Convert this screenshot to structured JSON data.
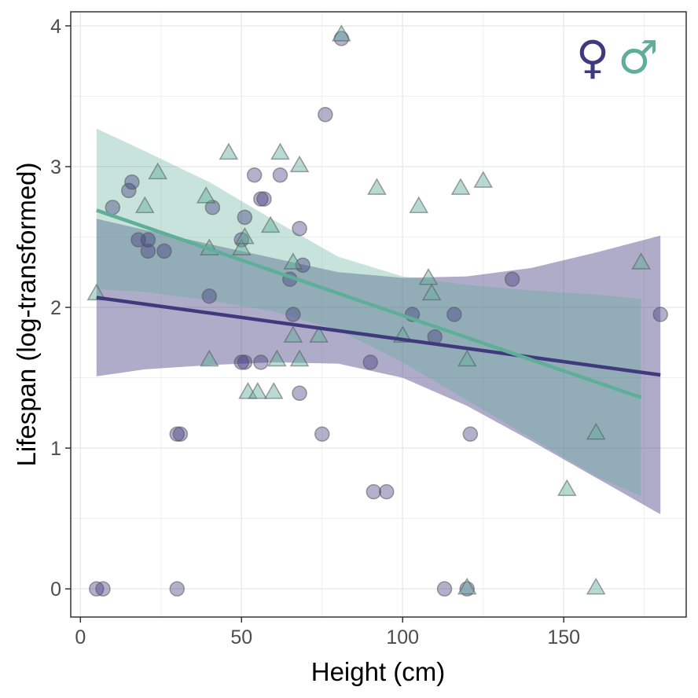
{
  "chart_data": {
    "type": "scatter",
    "title": "",
    "xlabel": "Height (cm)",
    "ylabel": "Lifespan (log-transformed)",
    "xlim": [
      -3,
      188
    ],
    "ylim": [
      -0.2,
      4.1
    ],
    "x_ticks": [
      0,
      50,
      100,
      150
    ],
    "y_ticks": [
      0,
      1,
      2,
      3,
      4
    ],
    "grid": true,
    "legend": {
      "position": "top-right",
      "entries": [
        {
          "name": "female",
          "symbol": "♀",
          "color": "#3f3a7e"
        },
        {
          "name": "male",
          "symbol": "♂",
          "color": "#5fae98"
        }
      ]
    },
    "series": [
      {
        "name": "female",
        "marker": "circle",
        "color": "#3f3a7e",
        "points": [
          [
            5,
            0
          ],
          [
            7,
            0
          ],
          [
            30,
            0
          ],
          [
            113,
            0
          ],
          [
            120,
            0
          ],
          [
            10,
            2.71
          ],
          [
            15,
            2.83
          ],
          [
            16,
            2.89
          ],
          [
            18,
            2.48
          ],
          [
            21,
            2.48
          ],
          [
            21,
            2.4
          ],
          [
            26,
            2.4
          ],
          [
            30,
            1.1
          ],
          [
            31,
            1.1
          ],
          [
            40,
            2.08
          ],
          [
            41,
            2.71
          ],
          [
            50,
            1.61
          ],
          [
            51,
            1.61
          ],
          [
            50,
            2.48
          ],
          [
            51,
            2.64
          ],
          [
            54,
            2.94
          ],
          [
            56,
            1.61
          ],
          [
            56,
            2.77
          ],
          [
            57,
            2.77
          ],
          [
            62,
            2.94
          ],
          [
            65,
            2.2
          ],
          [
            66,
            1.95
          ],
          [
            68,
            2.56
          ],
          [
            68,
            1.39
          ],
          [
            69,
            2.3
          ],
          [
            75,
            1.1
          ],
          [
            76,
            3.37
          ],
          [
            81,
            3.91
          ],
          [
            90,
            1.61
          ],
          [
            91,
            0.69
          ],
          [
            95,
            0.69
          ],
          [
            103,
            1.95
          ],
          [
            110,
            1.79
          ],
          [
            116,
            1.95
          ],
          [
            121,
            1.1
          ],
          [
            134,
            2.2
          ],
          [
            180,
            1.95
          ]
        ],
        "trend": {
          "x": [
            5,
            180
          ],
          "y": [
            2.07,
            1.52
          ]
        },
        "ci_upper": [
          [
            5,
            2.63
          ],
          [
            20,
            2.55
          ],
          [
            40,
            2.45
          ],
          [
            60,
            2.35
          ],
          [
            80,
            2.25
          ],
          [
            100,
            2.21
          ],
          [
            120,
            2.22
          ],
          [
            140,
            2.28
          ],
          [
            160,
            2.39
          ],
          [
            180,
            2.51
          ]
        ],
        "ci_lower": [
          [
            5,
            1.51
          ],
          [
            20,
            1.56
          ],
          [
            40,
            1.59
          ],
          [
            60,
            1.61
          ],
          [
            80,
            1.6
          ],
          [
            100,
            1.5
          ],
          [
            120,
            1.3
          ],
          [
            140,
            1.05
          ],
          [
            160,
            0.79
          ],
          [
            180,
            0.53
          ]
        ]
      },
      {
        "name": "male",
        "marker": "triangle",
        "color": "#5fae98",
        "points": [
          [
            5,
            2.1
          ],
          [
            20,
            2.72
          ],
          [
            24,
            2.96
          ],
          [
            39,
            2.79
          ],
          [
            40,
            1.63
          ],
          [
            40,
            2.42
          ],
          [
            46,
            3.1
          ],
          [
            50,
            2.42
          ],
          [
            51,
            2.5
          ],
          [
            52,
            1.4
          ],
          [
            55,
            1.4
          ],
          [
            59,
            2.58
          ],
          [
            60,
            1.4
          ],
          [
            61,
            1.63
          ],
          [
            62,
            3.1
          ],
          [
            66,
            2.32
          ],
          [
            66,
            1.8
          ],
          [
            68,
            1.63
          ],
          [
            68,
            3.01
          ],
          [
            74,
            1.8
          ],
          [
            81,
            3.94
          ],
          [
            92,
            2.85
          ],
          [
            100,
            1.8
          ],
          [
            105,
            2.72
          ],
          [
            108,
            2.21
          ],
          [
            109,
            2.1
          ],
          [
            118,
            2.85
          ],
          [
            120,
            1.63
          ],
          [
            120,
            0.01
          ],
          [
            125,
            2.9
          ],
          [
            151,
            0.71
          ],
          [
            160,
            1.11
          ],
          [
            160,
            0.01
          ],
          [
            174,
            2.32
          ]
        ],
        "trend": {
          "x": [
            5,
            174
          ],
          "y": [
            2.69,
            1.36
          ]
        },
        "ci_upper": [
          [
            5,
            3.27
          ],
          [
            20,
            3.11
          ],
          [
            40,
            2.89
          ],
          [
            60,
            2.62
          ],
          [
            80,
            2.36
          ],
          [
            100,
            2.22
          ],
          [
            120,
            2.16
          ],
          [
            140,
            2.12
          ],
          [
            160,
            2.09
          ],
          [
            174,
            2.06
          ]
        ],
        "ci_lower": [
          [
            5,
            2.13
          ],
          [
            20,
            2.11
          ],
          [
            40,
            2.05
          ],
          [
            60,
            1.97
          ],
          [
            80,
            1.84
          ],
          [
            100,
            1.61
          ],
          [
            120,
            1.34
          ],
          [
            140,
            1.07
          ],
          [
            160,
            0.8
          ],
          [
            174,
            0.66
          ]
        ]
      }
    ]
  }
}
